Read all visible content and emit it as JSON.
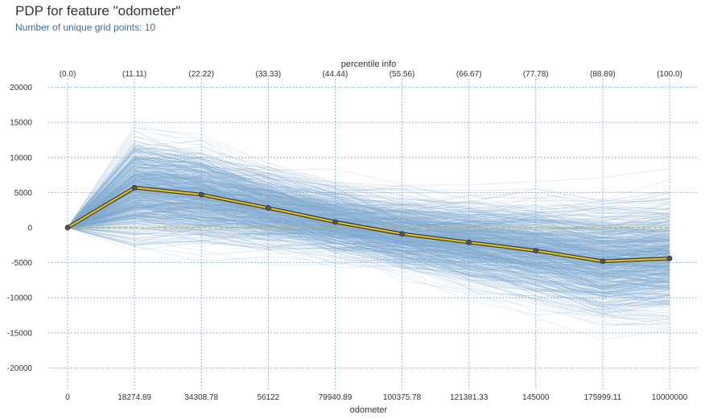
{
  "chart_data": {
    "type": "line",
    "title": "PDP for feature \"odometer\"",
    "subtitle": "Number of unique grid points: 10",
    "xlabel": "odometer",
    "top_axis_title": "percentile info",
    "categories": [
      "0",
      "18274.89",
      "34308.78",
      "56122",
      "79940.89",
      "100375.78",
      "121381.33",
      "145000",
      "175999.11",
      "10000000"
    ],
    "percentiles": [
      "(0.0)",
      "(11.11)",
      "(22.22)",
      "(33.33)",
      "(44.44)",
      "(55.56)",
      "(66.67)",
      "(77.78)",
      "(88.89)",
      "(100.0)"
    ],
    "y_ticks": [
      20000,
      15000,
      10000,
      5000,
      0,
      -5000,
      -10000,
      -15000,
      -20000
    ],
    "ylim": [
      -23000,
      21000
    ],
    "grid": true,
    "series": [
      {
        "values": [
          0,
          5700,
          4700,
          2800,
          800,
          -900,
          -2100,
          -3300,
          -4800,
          -4400
        ]
      }
    ],
    "reference_line": 0,
    "colors": {
      "ice": "#7ea8cf",
      "pdp": "#e3c21a",
      "pdp_outline": "#333333",
      "grid": "#7fa6c8",
      "zero": "#d4b21a"
    }
  }
}
